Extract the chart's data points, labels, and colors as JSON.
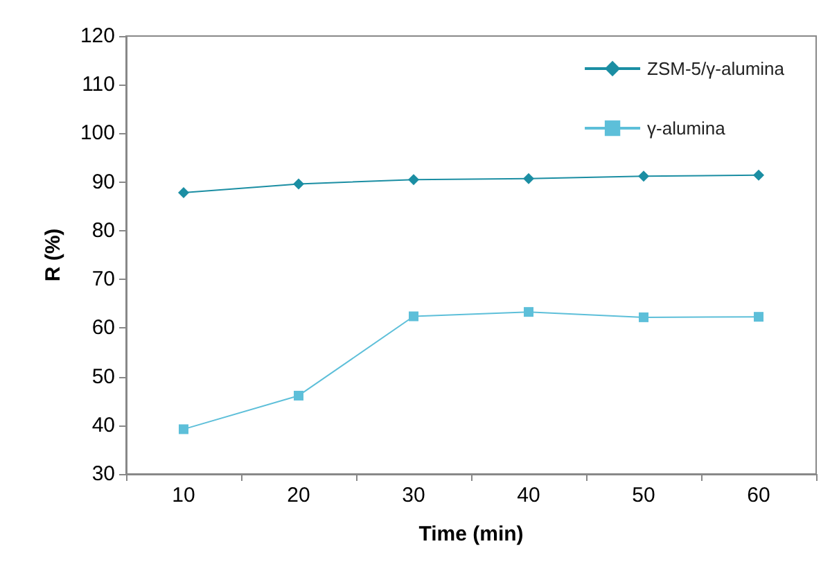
{
  "chart_data": {
    "type": "line",
    "xlabel": "Time (min)",
    "ylabel": "R (%)",
    "categories": [
      "10",
      "20",
      "30",
      "40",
      "50",
      "60"
    ],
    "series": [
      {
        "name": "ZSM-5/γ-alumina",
        "color": "#1b8ea3",
        "marker": "diamond",
        "values": [
          87.8,
          89.6,
          90.5,
          90.7,
          91.2,
          91.4
        ]
      },
      {
        "name": "γ-alumina",
        "color": "#5dbfd9",
        "marker": "square",
        "values": [
          39.2,
          46.1,
          62.4,
          63.3,
          62.2,
          62.3
        ]
      }
    ],
    "ylim": [
      30,
      120
    ],
    "yticks": [
      30,
      40,
      50,
      60,
      70,
      80,
      90,
      100,
      110,
      120
    ],
    "grid": false,
    "legend": "top right",
    "line_style": "solid"
  }
}
